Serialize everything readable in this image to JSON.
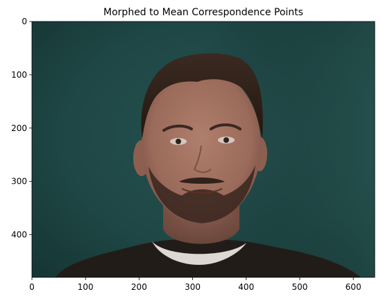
{
  "chart_data": {
    "type": "image",
    "title": "Morphed to Mean Correspondence Points",
    "xlabel": "",
    "ylabel": "",
    "xlim": [
      0,
      640
    ],
    "ylim": [
      480,
      0
    ],
    "x_ticks": [
      0,
      100,
      200,
      300,
      400,
      500,
      600
    ],
    "y_ticks": [
      0,
      100,
      200,
      300,
      400
    ],
    "grid": false,
    "image": {
      "subject": "morphed face photograph",
      "background_color": "#1e4a48",
      "shirt_color": "#221c18",
      "hair_color": "#2c1d16",
      "skin_color": "#a27362"
    }
  }
}
